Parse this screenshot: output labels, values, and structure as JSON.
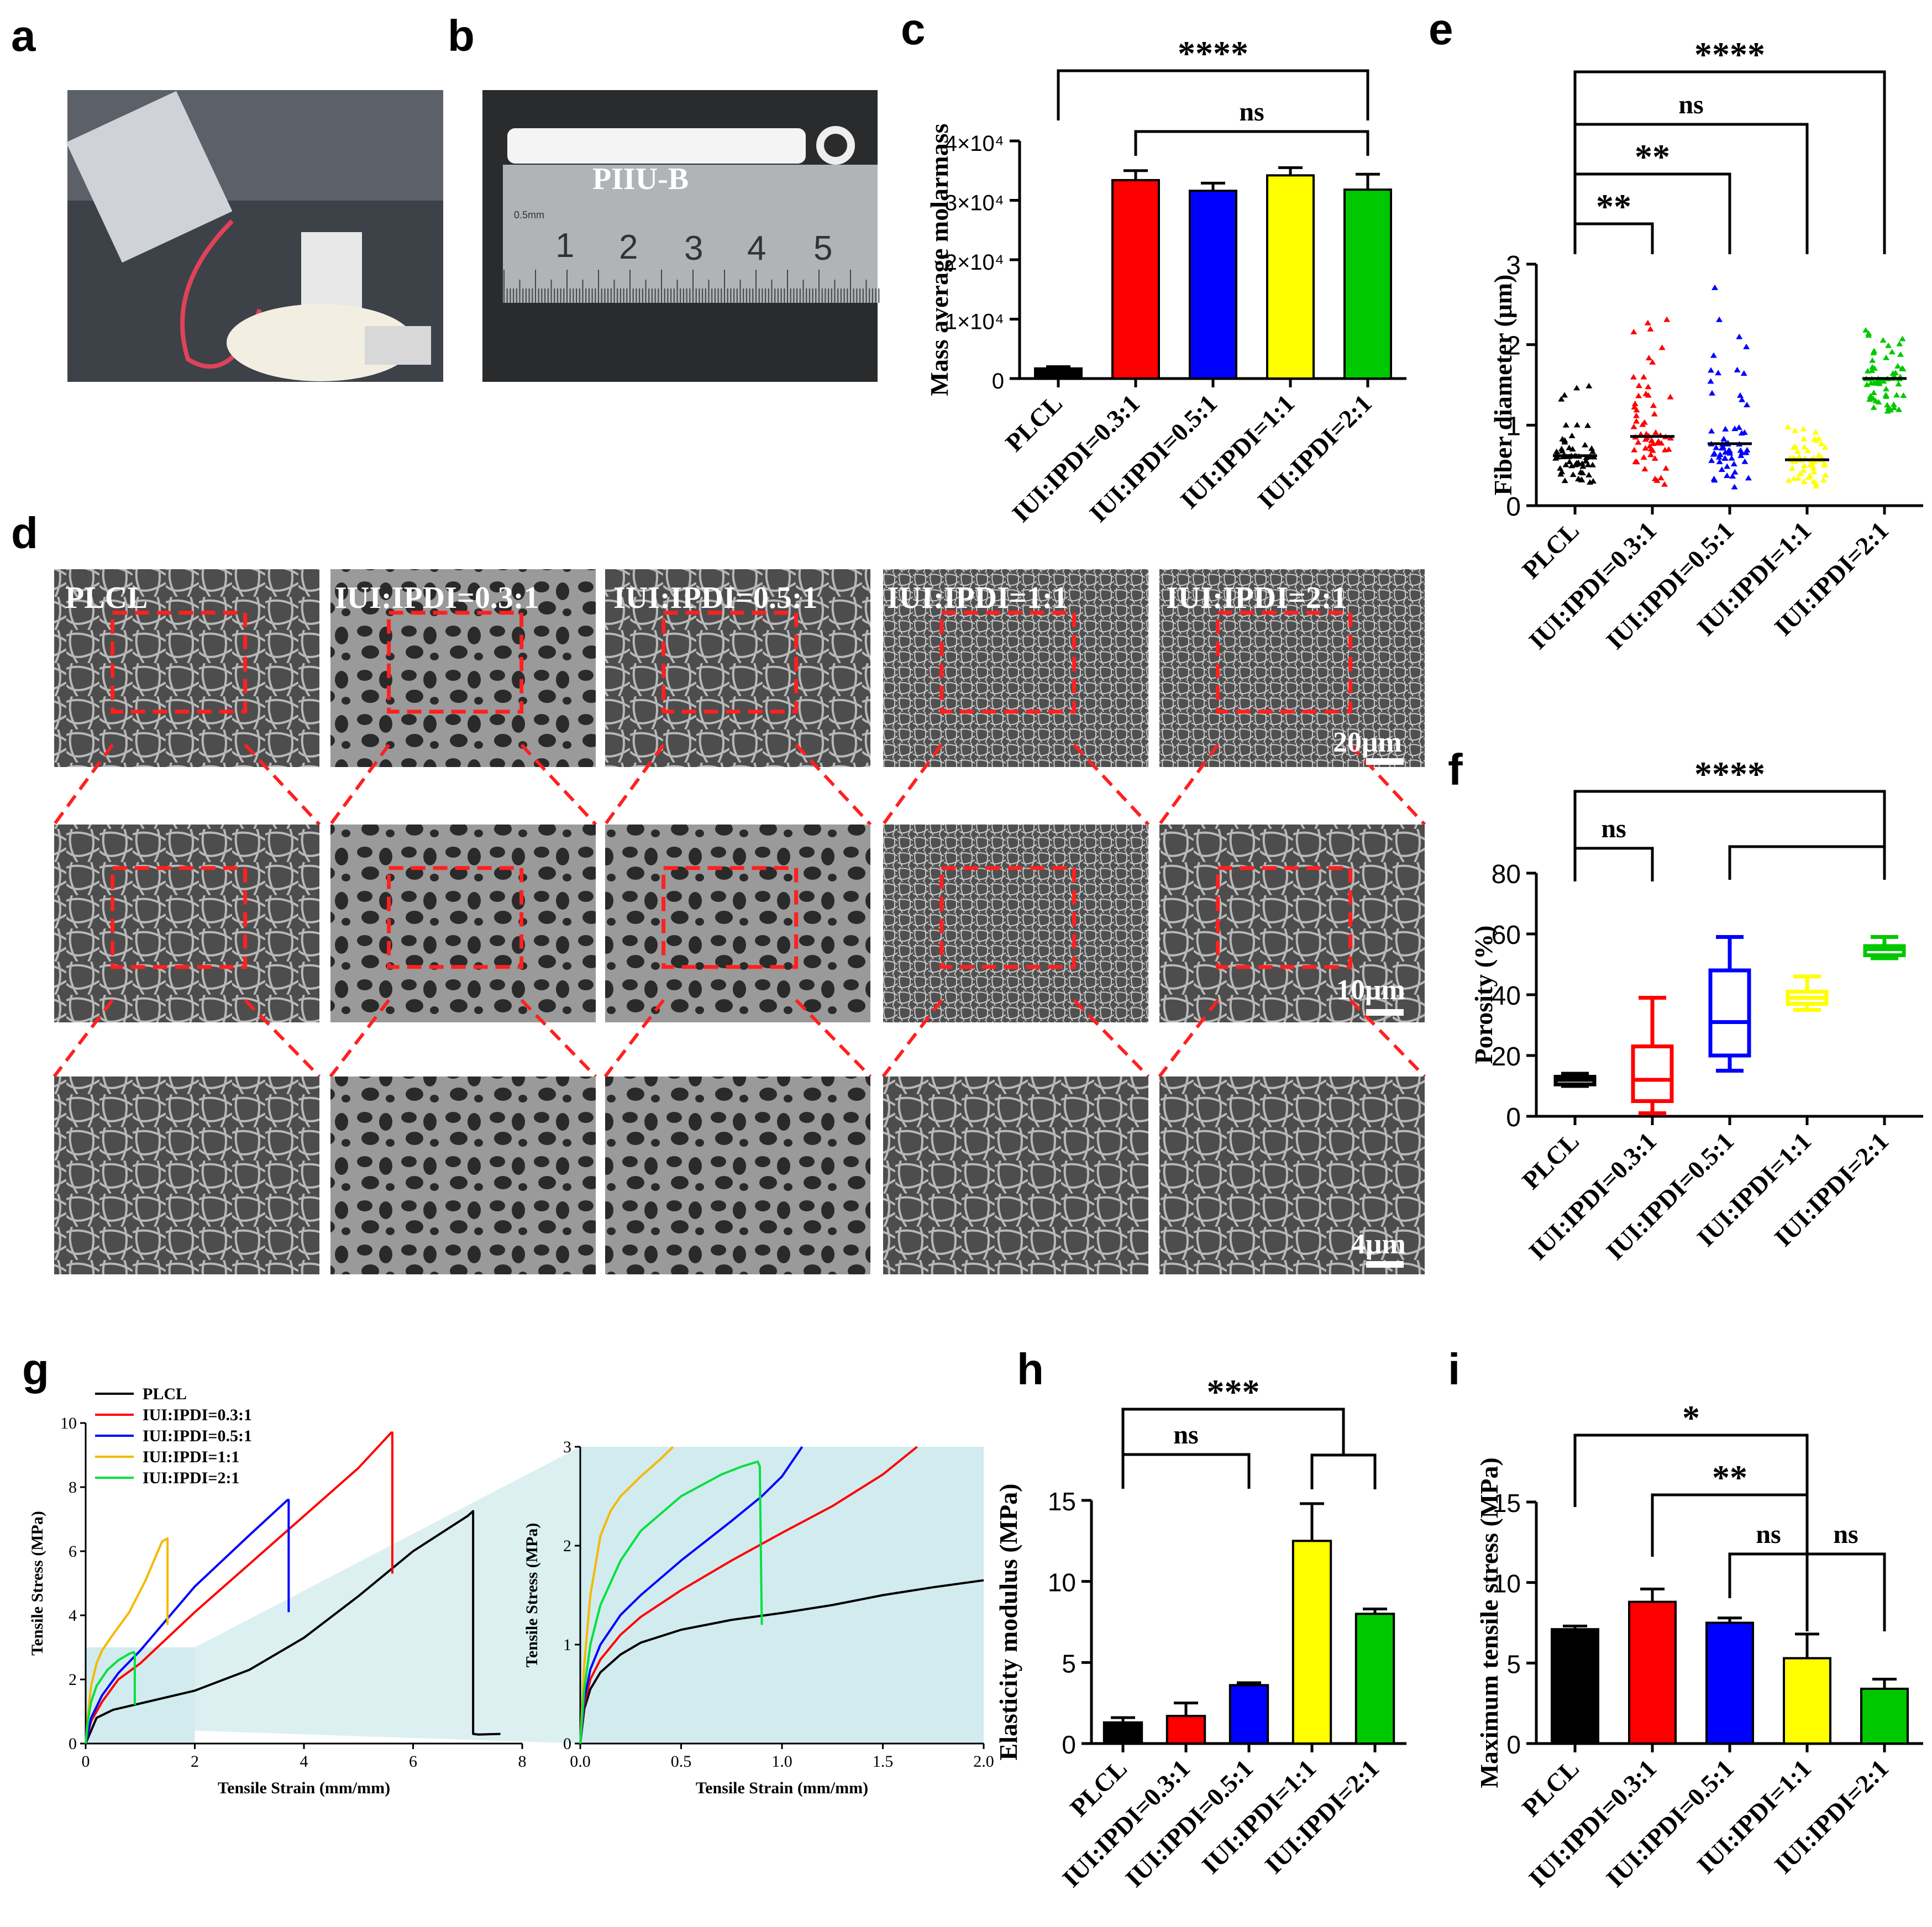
{
  "panel_labels": [
    "a",
    "b",
    "c",
    "d",
    "e",
    "f",
    "g",
    "h",
    "i"
  ],
  "groups": [
    "PLCL",
    "IUI:IPDI=0.3:1",
    "IUI:IPDI=0.5:1",
    "IUI:IPDI=1:1",
    "IUI:IPDI=2:1"
  ],
  "colors": {
    "PLCL": "#000000",
    "IUI:IPDI=0.3:1": "#ff0000",
    "IUI:IPDI=0.5:1": "#0000ff",
    "IUI:IPDI=1:1": "#ffff00",
    "IUI:IPDI=2:1": "#00c800",
    "curve_yellow": "#f5b800",
    "curve_green": "#00e040",
    "photo_bg": "#3a3e44",
    "sem_bg": "#555555",
    "dash_red": "#ff2020",
    "zoom_fill": "#bfe3e8"
  },
  "photo_a": {
    "icon": "electrospinning-setup-photo"
  },
  "photo_b": {
    "label": "PIIU-B",
    "ruler_numbers": [
      "1",
      "2",
      "3",
      "4",
      "5"
    ],
    "ruler_unit": "0.5mm"
  },
  "sem_d": {
    "column_labels": [
      "PLCL",
      "IUI:IPDI=0.3:1",
      "IUI:IPDI=0.5:1",
      "IUI:IPDI=1:1",
      "IUI:IPDI=2:1"
    ],
    "scale_bars": [
      "20μm",
      "10μm",
      "4μm"
    ]
  },
  "chart_data": [
    {
      "panel": "c",
      "type": "bar",
      "ylabel": "Mass average molarmass",
      "categories": [
        "PLCL",
        "IUI:IPDI=0.3:1",
        "IUI:IPDI=0.5:1",
        "IUI:IPDI=1:1",
        "IUI:IPDI=2:1"
      ],
      "values": [
        1700,
        33400,
        31600,
        34200,
        31800
      ],
      "errors": [
        300,
        1600,
        1300,
        1300,
        2600
      ],
      "ylim": [
        0,
        40000
      ],
      "ytick_labels": [
        "0",
        "1×10⁴",
        "2×10⁴",
        "3×10⁴",
        "4×10⁴"
      ],
      "significance": [
        {
          "label": "****",
          "from": 0,
          "to": 4
        },
        {
          "label": "ns",
          "from": 1,
          "to": 4
        }
      ]
    },
    {
      "panel": "e",
      "type": "scatter",
      "ylabel": "Fiber diameter (μm)",
      "categories": [
        "PLCL",
        "IUI:IPDI=0.3:1",
        "IUI:IPDI=0.5:1",
        "IUI:IPDI=1:1",
        "IUI:IPDI=2:1"
      ],
      "medians": [
        0.62,
        0.86,
        0.77,
        0.57,
        1.58
      ],
      "ranges": [
        [
          0.28,
          1.65
        ],
        [
          0.25,
          2.45
        ],
        [
          0.22,
          2.75
        ],
        [
          0.22,
          1.0
        ],
        [
          1.15,
          2.2
        ]
      ],
      "ylim": [
        0,
        3
      ],
      "ytick_labels": [
        "0",
        "1",
        "2",
        "3"
      ],
      "significance": [
        {
          "label": "****",
          "from": 0,
          "to": 4
        },
        {
          "label": "ns",
          "from": 0,
          "to": 3
        },
        {
          "label": "**",
          "from": 0,
          "to": 2
        },
        {
          "label": "**",
          "from": 0,
          "to": 1
        }
      ]
    },
    {
      "panel": "f",
      "type": "box",
      "ylabel": "Porosity (%)",
      "categories": [
        "PLCL",
        "IUI:IPDI=0.3:1",
        "IUI:IPDI=0.5:1",
        "IUI:IPDI=1:1",
        "IUI:IPDI=2:1"
      ],
      "boxes": [
        {
          "min": 10,
          "q1": 10.5,
          "median": 12,
          "q3": 13,
          "max": 14
        },
        {
          "min": 1,
          "q1": 5,
          "median": 12,
          "q3": 23,
          "max": 39
        },
        {
          "min": 15,
          "q1": 20,
          "median": 31,
          "q3": 48,
          "max": 59
        },
        {
          "min": 35,
          "q1": 37,
          "median": 39,
          "q3": 41,
          "max": 46
        },
        {
          "min": 52,
          "q1": 53,
          "median": 55,
          "q3": 56,
          "max": 59
        }
      ],
      "ylim": [
        0,
        80
      ],
      "ytick_labels": [
        "0",
        "20",
        "40",
        "60",
        "80"
      ],
      "significance": [
        {
          "label": "****",
          "from": 0,
          "to": 4
        },
        {
          "label": "ns",
          "from": 0,
          "to": 1
        }
      ]
    },
    {
      "panel": "g",
      "type": "line",
      "xlabel": "Tensile Strain (mm/mm)",
      "ylabel": "Tensile Stress (MPa)",
      "xlim": [
        0,
        8
      ],
      "ylim": [
        0,
        10
      ],
      "xtick_labels": [
        "0",
        "2",
        "4",
        "6",
        "8"
      ],
      "ytick_labels": [
        "0",
        "2",
        "4",
        "6",
        "8",
        "10"
      ],
      "legend": [
        "PLCL",
        "IUI:IPDI=0.3:1",
        "IUI:IPDI=0.5:1",
        "IUI:IPDI=1:1",
        "IUI:IPDI=2:1"
      ],
      "series": [
        {
          "name": "PLCL",
          "x": [
            0,
            0.2,
            0.5,
            1,
            2,
            3,
            4,
            5,
            6,
            7,
            7.1,
            7.1,
            7.2,
            7.6
          ],
          "y": [
            0,
            0.8,
            1.05,
            1.25,
            1.65,
            2.3,
            3.3,
            4.6,
            6.0,
            7.1,
            7.25,
            0.3,
            0.28,
            0.3
          ]
        },
        {
          "name": "IUI:IPDI=0.3:1",
          "x": [
            0,
            0.1,
            0.3,
            0.6,
            1,
            2,
            3,
            4,
            5,
            5.6,
            5.62,
            5.62
          ],
          "y": [
            0,
            0.7,
            1.3,
            2.0,
            2.5,
            4.1,
            5.6,
            7.1,
            8.6,
            9.7,
            9.7,
            5.3
          ]
        },
        {
          "name": "IUI:IPDI=0.5:1",
          "x": [
            0,
            0.1,
            0.3,
            0.6,
            1,
            1.5,
            2,
            2.5,
            3,
            3.7,
            3.72,
            3.72
          ],
          "y": [
            0,
            0.8,
            1.5,
            2.2,
            2.9,
            3.9,
            4.9,
            5.7,
            6.5,
            7.6,
            7.6,
            4.1
          ]
        },
        {
          "name": "IUI:IPDI=1:1",
          "x": [
            0,
            0.05,
            0.1,
            0.2,
            0.3,
            0.5,
            0.8,
            1.1,
            1.4,
            1.5,
            1.5
          ],
          "y": [
            0,
            1.0,
            1.8,
            2.5,
            2.9,
            3.4,
            4.1,
            5.1,
            6.3,
            6.4,
            3.7
          ]
        },
        {
          "name": "IUI:IPDI=2:1",
          "x": [
            0,
            0.05,
            0.1,
            0.2,
            0.4,
            0.6,
            0.8,
            0.88,
            0.9,
            0.9
          ],
          "y": [
            0,
            0.8,
            1.3,
            1.8,
            2.3,
            2.6,
            2.8,
            2.85,
            2.8,
            1.2
          ]
        }
      ]
    },
    {
      "panel": "g-inset",
      "type": "line",
      "xlabel": "Tensile Strain (mm/mm)",
      "ylabel": "Tensile Stress (MPa)",
      "xlim": [
        0,
        2
      ],
      "ylim": [
        0,
        3
      ],
      "xtick_labels": [
        "0.0",
        "0.5",
        "1.0",
        "1.5",
        "2.0"
      ],
      "ytick_labels": [
        "0",
        "1",
        "2",
        "3"
      ],
      "series": [
        {
          "name": "PLCL",
          "x": [
            0,
            0.02,
            0.05,
            0.1,
            0.2,
            0.3,
            0.5,
            0.75,
            1.0,
            1.25,
            1.5,
            1.75,
            2.0
          ],
          "y": [
            0,
            0.35,
            0.55,
            0.72,
            0.9,
            1.02,
            1.15,
            1.25,
            1.32,
            1.4,
            1.5,
            1.58,
            1.65
          ]
        },
        {
          "name": "IUI:IPDI=0.3:1",
          "x": [
            0,
            0.02,
            0.05,
            0.1,
            0.2,
            0.3,
            0.5,
            0.75,
            1.0,
            1.25,
            1.5,
            1.67
          ],
          "y": [
            0,
            0.4,
            0.65,
            0.85,
            1.1,
            1.28,
            1.55,
            1.85,
            2.13,
            2.4,
            2.72,
            3.0
          ]
        },
        {
          "name": "IUI:IPDI=0.5:1",
          "x": [
            0,
            0.02,
            0.05,
            0.1,
            0.2,
            0.3,
            0.5,
            0.75,
            0.9,
            1.0,
            1.1
          ],
          "y": [
            0,
            0.45,
            0.75,
            1.0,
            1.3,
            1.5,
            1.85,
            2.25,
            2.5,
            2.7,
            3.0
          ]
        },
        {
          "name": "IUI:IPDI=1:1",
          "x": [
            0,
            0.02,
            0.05,
            0.1,
            0.15,
            0.2,
            0.3,
            0.4,
            0.46
          ],
          "y": [
            0,
            0.8,
            1.5,
            2.1,
            2.35,
            2.5,
            2.7,
            2.88,
            3.0
          ]
        },
        {
          "name": "IUI:IPDI=2:1",
          "x": [
            0,
            0.02,
            0.05,
            0.1,
            0.2,
            0.3,
            0.5,
            0.7,
            0.8,
            0.88,
            0.89,
            0.9
          ],
          "y": [
            0,
            0.55,
            1.0,
            1.4,
            1.85,
            2.15,
            2.5,
            2.72,
            2.8,
            2.85,
            2.8,
            1.2
          ]
        }
      ]
    },
    {
      "panel": "h",
      "type": "bar",
      "ylabel": "Elasticity modulus (MPa)",
      "categories": [
        "PLCL",
        "IUI:IPDI=0.3:1",
        "IUI:IPDI=0.5:1",
        "IUI:IPDI=1:1",
        "IUI:IPDI=2:1"
      ],
      "values": [
        1.3,
        1.7,
        3.6,
        12.5,
        8.0
      ],
      "errors": [
        0.3,
        0.8,
        0.15,
        2.3,
        0.3
      ],
      "ylim": [
        0,
        15
      ],
      "ytick_labels": [
        "0",
        "5",
        "10",
        "15"
      ],
      "significance": [
        {
          "label": "***",
          "from": 0,
          "to": "3-4"
        },
        {
          "label": "ns",
          "from": 0,
          "to": 2
        }
      ]
    },
    {
      "panel": "i",
      "type": "bar",
      "ylabel": "Maximum tensile stress (MPa)",
      "categories": [
        "PLCL",
        "IUI:IPDI=0.3:1",
        "IUI:IPDI=0.5:1",
        "IUI:IPDI=1:1",
        "IUI:IPDI=2:1"
      ],
      "values": [
        7.1,
        8.8,
        7.5,
        5.3,
        3.4
      ],
      "errors": [
        0.2,
        0.8,
        0.3,
        1.5,
        0.6
      ],
      "ylim": [
        0,
        15
      ],
      "ytick_labels": [
        "0",
        "5",
        "10",
        "15"
      ],
      "significance": [
        {
          "label": "*",
          "from": 0,
          "to": 3
        },
        {
          "label": "**",
          "from": 1,
          "to": 3
        },
        {
          "label": "ns",
          "from": 2,
          "to": 3
        },
        {
          "label": "ns",
          "from": 3,
          "to": 4
        }
      ]
    }
  ]
}
